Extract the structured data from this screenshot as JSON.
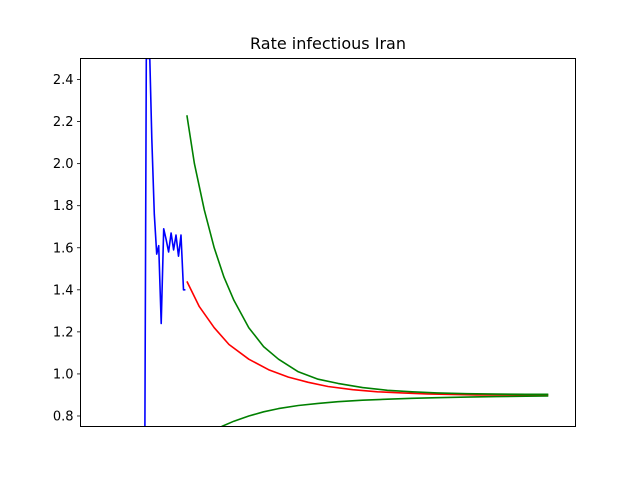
{
  "chart_data": {
    "type": "line",
    "title": "Rate infectious Iran",
    "xlabel": "",
    "ylabel": "",
    "xlim": [
      0,
      100
    ],
    "ylim": [
      0.75,
      2.5
    ],
    "yticks": [
      "0.8",
      "1.0",
      "1.2",
      "1.4",
      "1.6",
      "1.8",
      "2.0",
      "2.2",
      "2.4"
    ],
    "xticks_visible": false,
    "grid": false,
    "legend": "none",
    "series": [
      {
        "color": "#0000ff",
        "x": [
          13.0,
          13.3,
          13.6,
          14.0,
          14.4,
          14.9,
          15.4,
          15.8,
          16.3,
          16.8,
          17.3,
          17.8,
          18.3,
          18.8,
          19.3,
          19.8,
          20.3,
          20.8,
          21.2
        ],
        "y": [
          0.75,
          2.5,
          2.5,
          2.5,
          2.12,
          1.76,
          1.57,
          1.61,
          1.24,
          1.69,
          1.64,
          1.58,
          1.67,
          1.59,
          1.66,
          1.56,
          1.66,
          1.4,
          1.4
        ]
      },
      {
        "color": "#ff0000",
        "x": [
          21.5,
          24,
          27,
          30,
          34,
          38,
          42,
          46,
          50,
          55,
          60,
          65,
          70,
          75,
          80,
          85,
          90,
          94.5
        ],
        "y": [
          1.44,
          1.32,
          1.22,
          1.14,
          1.07,
          1.02,
          0.985,
          0.96,
          0.94,
          0.925,
          0.915,
          0.91,
          0.905,
          0.902,
          0.9,
          0.9,
          0.9,
          0.9
        ]
      },
      {
        "color": "#008000",
        "x": [
          21.5,
          23,
          25,
          27,
          29,
          31,
          34,
          37,
          40,
          44,
          48,
          52,
          57,
          62,
          67,
          72,
          78,
          84,
          90,
          94.5
        ],
        "y": [
          2.23,
          2.0,
          1.78,
          1.6,
          1.46,
          1.35,
          1.22,
          1.13,
          1.07,
          1.01,
          0.975,
          0.955,
          0.935,
          0.922,
          0.915,
          0.91,
          0.906,
          0.904,
          0.903,
          0.903
        ]
      },
      {
        "color": "#008000",
        "x": [
          28.5,
          31,
          34,
          37,
          40,
          44,
          48,
          52,
          57,
          62,
          67,
          72,
          78,
          84,
          90,
          94.5
        ],
        "y": [
          0.75,
          0.775,
          0.8,
          0.82,
          0.835,
          0.85,
          0.86,
          0.868,
          0.875,
          0.88,
          0.884,
          0.887,
          0.89,
          0.892,
          0.894,
          0.895
        ]
      }
    ]
  }
}
